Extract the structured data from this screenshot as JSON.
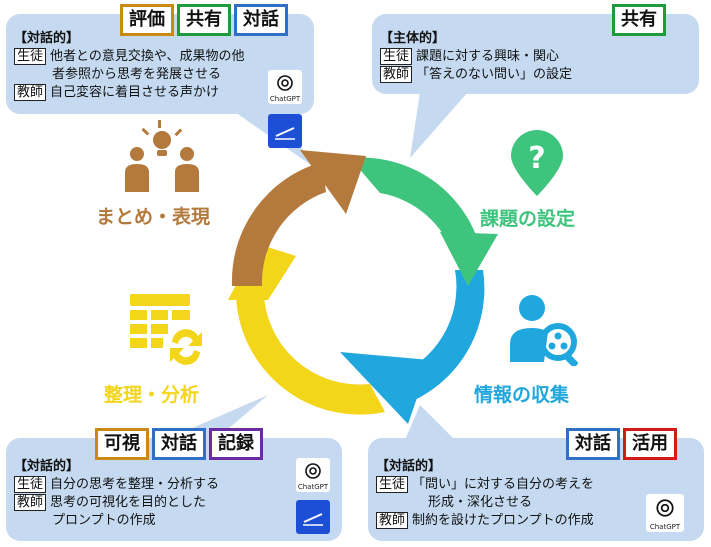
{
  "colors": {
    "bubble": "#c5daf0",
    "brown": "#b47a3d",
    "green": "#3fc47e",
    "blue": "#20a7de",
    "yellow": "#f3d51a",
    "badge_orange": "#c98a12",
    "badge_green": "#1f9b3c",
    "badge_blue": "#2f6fc5",
    "badge_purple": "#6a2ca0",
    "badge_red": "#d11b1b"
  },
  "top_left": {
    "tag": "【対話的】",
    "lines": [
      {
        "role": "生徒",
        "text": "他者との意見交換や、成果物の他"
      },
      {
        "role": "",
        "text": "者参照から思考を発展させる"
      },
      {
        "role": "教師",
        "text": "自己変容に着目させる声かけ"
      }
    ],
    "badges": [
      "評価",
      "共有",
      "対話"
    ]
  },
  "top_right": {
    "tag": "【主体的】",
    "lines": [
      {
        "role": "生徒",
        "text": "課題に対する興味・関心"
      },
      {
        "role": "教師",
        "text": "「答えのない問い」の設定"
      }
    ],
    "badges": [
      "共有"
    ]
  },
  "bottom_left": {
    "tag": "【対話的】",
    "lines": [
      {
        "role": "生徒",
        "text": "自分の思考を整理・分析する"
      },
      {
        "role": "教師",
        "text": "思考の可視化を目的とした"
      },
      {
        "role": "",
        "text": "プロンプトの作成"
      }
    ],
    "badges": [
      "可視",
      "対話",
      "記録"
    ]
  },
  "bottom_right": {
    "tag": "【対話的】",
    "lines": [
      {
        "role": "生徒",
        "text": "「問い」に対する自分の考えを"
      },
      {
        "role": "",
        "text": "形成・深化させる"
      },
      {
        "role": "教師",
        "text": "制約を設けたプロンプトの作成"
      }
    ],
    "badges": [
      "対話",
      "活用"
    ]
  },
  "steps": {
    "summary": "まとめ・表現",
    "task": "課題の設定",
    "info": "情報の収集",
    "organize": "整理・分析"
  },
  "chatgpt_label": "ChatGPT"
}
